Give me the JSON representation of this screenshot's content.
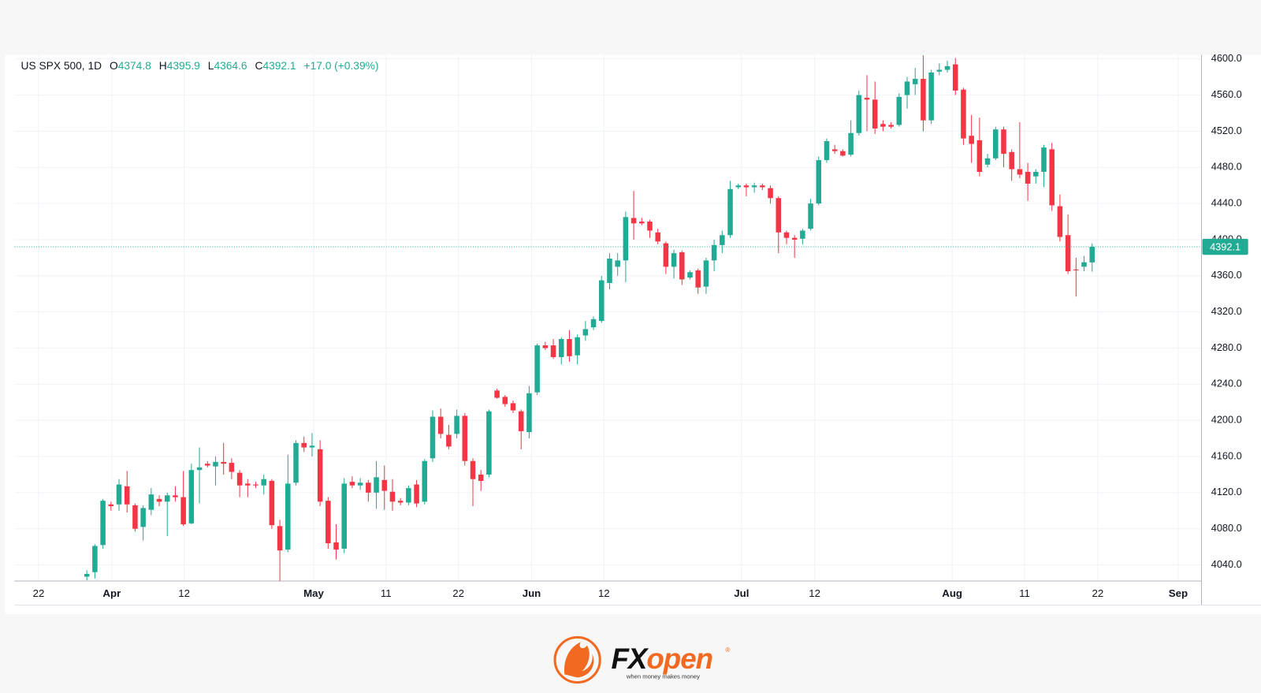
{
  "chart_data": {
    "type": "candlestick",
    "symbol": "US SPX 500, 1D",
    "ohlc_labels": [
      "O",
      "H",
      "L",
      "C"
    ],
    "change": "+17.0 (+0.39%)",
    "up_color": "#22ab94",
    "down_color": "#f23645",
    "grid": true,
    "xlim": [
      -9,
      138.6
    ],
    "xticks": [
      {
        "value": -6,
        "label": "22"
      },
      {
        "value": 3.1,
        "label": "Apr"
      },
      {
        "value": 12.1,
        "label": "12"
      },
      {
        "value": 28.2,
        "label": "May"
      },
      {
        "value": 37.2,
        "label": "11"
      },
      {
        "value": 46.2,
        "label": "22"
      },
      {
        "value": 55.3,
        "label": "Jun"
      },
      {
        "value": 64.3,
        "label": "12"
      },
      {
        "value": 81.4,
        "label": "Jul"
      },
      {
        "value": 90.5,
        "label": "12"
      },
      {
        "value": 107.6,
        "label": "Aug"
      },
      {
        "value": 116.6,
        "label": "11"
      },
      {
        "value": 125.7,
        "label": "22"
      },
      {
        "value": 135.7,
        "label": "Sep"
      }
    ],
    "ylim": [
      4022.2,
      4604.5
    ],
    "yticks": [
      {
        "value": 4040,
        "label": "4040.0"
      },
      {
        "value": 4080,
        "label": "4080.0"
      },
      {
        "value": 4120,
        "label": "4120.0"
      },
      {
        "value": 4160,
        "label": "4160.0"
      },
      {
        "value": 4200,
        "label": "4200.0"
      },
      {
        "value": 4240,
        "label": "4240.0"
      },
      {
        "value": 4280,
        "label": "4280.0"
      },
      {
        "value": 4320,
        "label": "4320.0"
      },
      {
        "value": 4360,
        "label": "4360.0"
      },
      {
        "value": 4400,
        "label": "4400.0"
      },
      {
        "value": 4440,
        "label": "4440.0"
      },
      {
        "value": 4480,
        "label": "4480.0"
      },
      {
        "value": 4520,
        "label": "4520.0"
      },
      {
        "value": 4560,
        "label": "4560.0"
      },
      {
        "value": 4600,
        "label": "4600.0"
      }
    ],
    "open": [
      4027,
      4032,
      4062,
      4107,
      4107,
      4127,
      4106,
      4082,
      4101,
      4113,
      4110,
      4117,
      4115,
      4086,
      4145,
      4152,
      4149,
      4154,
      4153,
      4142,
      4130,
      4129,
      4128,
      4133,
      4083,
      4057,
      4131,
      4175,
      4170,
      4168,
      4111,
      4065,
      4058,
      4132,
      4128,
      4131,
      4120,
      4134,
      4121,
      4111,
      4109,
      4129,
      4110,
      4158,
      4204,
      4184,
      4185,
      4205,
      4155,
      4140,
      4140,
      4233,
      4226,
      4219,
      4210,
      4187,
      4231,
      4283,
      4283,
      4270,
      4290,
      4272,
      4294,
      4303,
      4310,
      4352,
      4370,
      4377,
      4424,
      4420,
      4420,
      4408,
      4396,
      4370,
      4386,
      4358,
      4366,
      4348,
      4377,
      4394,
      4405,
      4458,
      4460,
      4458,
      4460,
      4457,
      4446,
      4408,
      4402,
      4401,
      4412,
      4440,
      4488,
      4500,
      4498,
      4494,
      4518,
      4557,
      4555,
      4528,
      4527,
      4527,
      4560,
      4572,
      4578,
      4532,
      4586,
      4588,
      4594,
      4566,
      4515,
      4510,
      4483,
      4490,
      4522,
      4497,
      4478,
      4475,
      4470,
      4475,
      4500,
      4437,
      4405,
      4367,
      4370,
      4374.8
    ],
    "high": [
      4034,
      4063,
      4113,
      4110,
      4135,
      4144,
      4108,
      4106,
      4125,
      4117,
      4120,
      4127,
      4144,
      4152,
      4170,
      4155,
      4160,
      4175,
      4158,
      4145,
      4135,
      4132,
      4140,
      4135,
      4090,
      4162,
      4178,
      4182,
      4186,
      4178,
      4115,
      4085,
      4136,
      4138,
      4136,
      4134,
      4155,
      4150,
      4135,
      4114,
      4128,
      4134,
      4157,
      4211,
      4213,
      4195,
      4212,
      4208,
      4158,
      4145,
      4212,
      4235,
      4228,
      4222,
      4212,
      4238,
      4285,
      4287,
      4290,
      4292,
      4300,
      4295,
      4310,
      4315,
      4360,
      4385,
      4385,
      4431,
      4454,
      4424,
      4422,
      4412,
      4398,
      4389,
      4388,
      4366,
      4368,
      4380,
      4400,
      4410,
      4465,
      4462,
      4462,
      4463,
      4462,
      4460,
      4448,
      4410,
      4405,
      4412,
      4445,
      4492,
      4512,
      4505,
      4500,
      4532,
      4565,
      4582,
      4575,
      4532,
      4530,
      4562,
      4580,
      4590,
      4604,
      4588,
      4595,
      4598,
      4601,
      4568,
      4538,
      4535,
      4495,
      4525,
      4525,
      4500,
      4530,
      4485,
      4478,
      4505,
      4507,
      4450,
      4428,
      4380,
      4382,
      4395.9
    ],
    "low": [
      4023,
      4025,
      4058,
      4100,
      4100,
      4098,
      4077,
      4067,
      4095,
      4105,
      4072,
      4110,
      4083,
      4085,
      4108,
      4148,
      4128,
      4140,
      4135,
      4115,
      4115,
      4125,
      4118,
      4080,
      4022,
      4054,
      4128,
      4165,
      4160,
      4105,
      4058,
      4046,
      4053,
      4125,
      4123,
      4110,
      4102,
      4101,
      4100,
      4106,
      4106,
      4104,
      4107,
      4154,
      4180,
      4168,
      4180,
      4150,
      4105,
      4122,
      4137,
      4224,
      4215,
      4208,
      4168,
      4180,
      4228,
      4278,
      4268,
      4262,
      4265,
      4262,
      4288,
      4300,
      4308,
      4345,
      4360,
      4353,
      4400,
      4416,
      4402,
      4395,
      4362,
      4357,
      4350,
      4356,
      4340,
      4340,
      4365,
      4385,
      4402,
      4456,
      4448,
      4452,
      4455,
      4440,
      4385,
      4395,
      4380,
      4395,
      4410,
      4438,
      4485,
      4495,
      4492,
      4492,
      4515,
      4520,
      4517,
      4520,
      4523,
      4525,
      4545,
      4560,
      4520,
      4528,
      4582,
      4585,
      4560,
      4505,
      4485,
      4470,
      4480,
      4488,
      4480,
      4465,
      4468,
      4443,
      4462,
      4458,
      4432,
      4398,
      4362,
      4337,
      4365,
      4364.6
    ],
    "close": [
      4030,
      4061,
      4111,
      4105,
      4129,
      4107,
      4080,
      4103,
      4118,
      4110,
      4117,
      4115,
      4085,
      4145,
      4148,
      4150,
      4154,
      4152,
      4143,
      4128,
      4128,
      4128,
      4135,
      4084,
      4056,
      4130,
      4175,
      4170,
      4172,
      4110,
      4064,
      4057,
      4130,
      4128,
      4131,
      4120,
      4137,
      4122,
      4110,
      4109,
      4125,
      4108,
      4155,
      4204,
      4185,
      4171,
      4205,
      4155,
      4135,
      4133,
      4210,
      4225,
      4218,
      4211,
      4188,
      4230,
      4283,
      4280,
      4270,
      4290,
      4271,
      4292,
      4301,
      4312,
      4355,
      4379,
      4377,
      4425,
      4418,
      4418,
      4410,
      4398,
      4370,
      4385,
      4356,
      4364,
      4347,
      4377,
      4394,
      4405,
      4456,
      4460,
      4458,
      4460,
      4458,
      4446,
      4408,
      4402,
      4400,
      4410,
      4440,
      4488,
      4509,
      4498,
      4493,
      4518,
      4560,
      4555,
      4523,
      4525,
      4525,
      4558,
      4575,
      4578,
      4532,
      4585,
      4588,
      4592,
      4565,
      4512,
      4506,
      4475,
      4490,
      4522,
      4495,
      4478,
      4472,
      4462,
      4475,
      4502,
      4438,
      4403,
      4365,
      4366,
      4375,
      4392.1
    ]
  },
  "logo": {
    "brand_fx": "FX",
    "brand_open": "open",
    "registered": "®",
    "tagline": "when money makes money"
  }
}
